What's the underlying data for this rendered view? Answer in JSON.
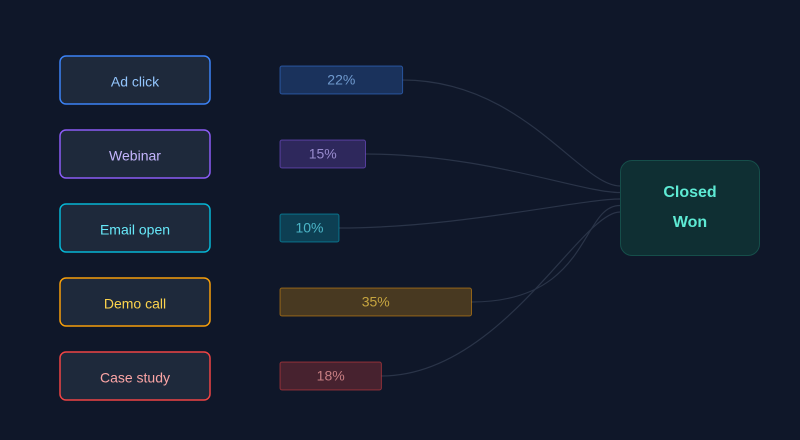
{
  "sources": [
    {
      "label": "Ad click",
      "value": 22,
      "value_label": "22%",
      "color": "#3b82f6",
      "text_color": "#93c5fd"
    },
    {
      "label": "Webinar",
      "value": 15,
      "value_label": "15%",
      "color": "#8b5cf6",
      "text_color": "#c4b5fd"
    },
    {
      "label": "Email open",
      "value": 10,
      "value_label": "10%",
      "color": "#06b6d4",
      "text_color": "#67e8f9"
    },
    {
      "label": "Demo call",
      "value": 35,
      "value_label": "35%",
      "color": "#f59e0b",
      "text_color": "#fcd34d"
    },
    {
      "label": "Case study",
      "value": 18,
      "value_label": "18%",
      "color": "#ef4444",
      "text_color": "#fca5a5"
    }
  ],
  "target": {
    "label": "Closed Won"
  }
}
